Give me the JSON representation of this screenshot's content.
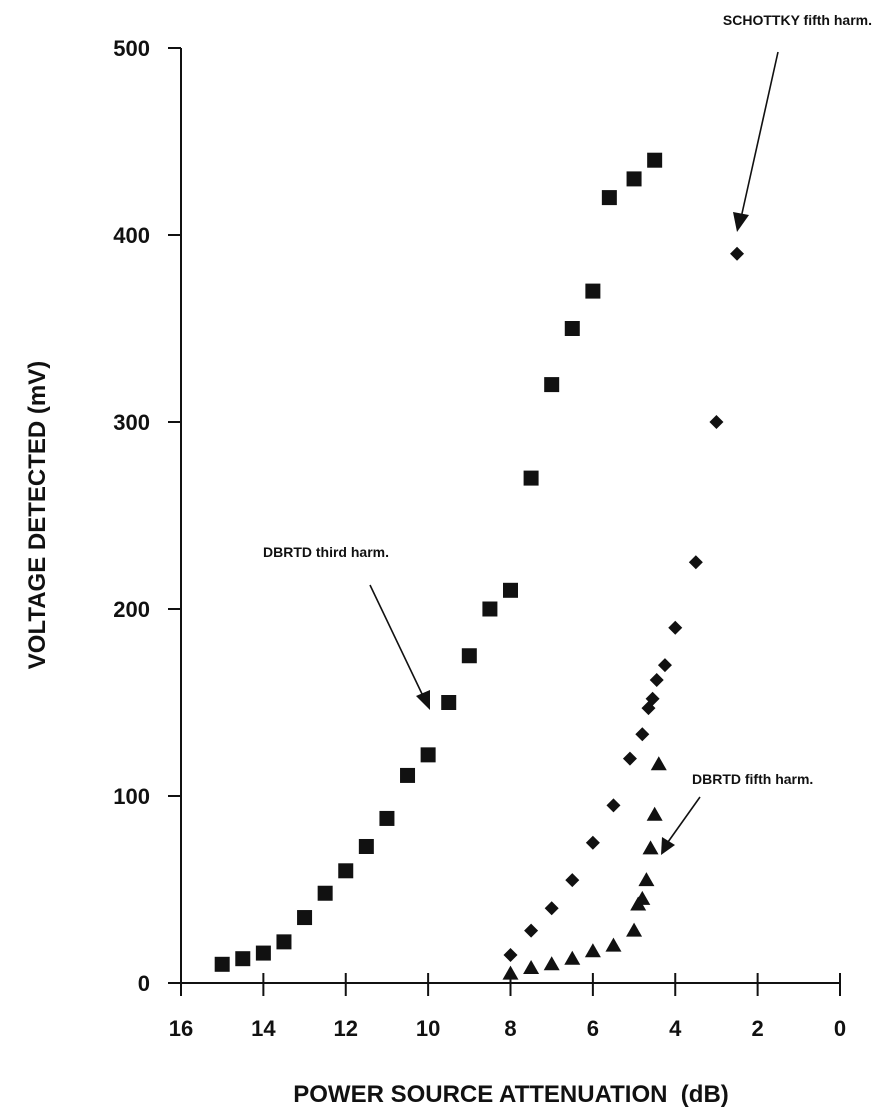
{
  "chart_data": {
    "type": "scatter",
    "title": "",
    "xlabel": "POWER SOURCE ATTENUATION  (dB)",
    "ylabel": "VOLTAGE DETECTED (mV)",
    "xlim": [
      16,
      0
    ],
    "ylim": [
      0,
      500
    ],
    "x_reversed": true,
    "x_ticks": [
      16,
      14,
      12,
      10,
      8,
      6,
      4,
      2,
      0
    ],
    "y_ticks": [
      0,
      100,
      200,
      300,
      400,
      500
    ],
    "grid": false,
    "series": [
      {
        "name": "DBRTD third harm.",
        "marker": "square",
        "x": [
          15.0,
          14.5,
          14.0,
          13.5,
          13.0,
          12.5,
          12.0,
          11.5,
          11.0,
          10.5,
          10.0,
          9.5,
          9.0,
          8.5,
          8.0,
          7.5,
          7.0,
          6.5,
          6.0,
          5.6,
          5.0,
          4.5
        ],
        "y": [
          10,
          13,
          16,
          22,
          35,
          48,
          60,
          73,
          88,
          111,
          122,
          150,
          175,
          200,
          210,
          270,
          320,
          350,
          370,
          420,
          430,
          440
        ]
      },
      {
        "name": "SCHOTTKY fifth harm.",
        "marker": "diamond",
        "x": [
          8.0,
          7.5,
          7.0,
          6.5,
          6.0,
          5.5,
          5.1,
          4.8,
          4.65,
          4.55,
          4.45,
          4.25,
          4.0,
          3.5,
          3.0,
          2.5
        ],
        "y": [
          15,
          28,
          40,
          55,
          75,
          95,
          120,
          133,
          147,
          152,
          162,
          170,
          190,
          225,
          300,
          390
        ]
      },
      {
        "name": "DBRTD fifth harm.",
        "marker": "triangle",
        "x": [
          8.0,
          7.5,
          7.0,
          6.5,
          6.0,
          5.5,
          5.0,
          4.9,
          4.8,
          4.7,
          4.6,
          4.5,
          4.4
        ],
        "y": [
          5,
          8,
          10,
          13,
          17,
          20,
          28,
          42,
          45,
          55,
          72,
          90,
          117
        ]
      }
    ],
    "annotations": [
      {
        "text": "SCHOTTKY fifth harm."
      },
      {
        "text": "DBRTD third harm."
      },
      {
        "text": "DBRTD fifth harm."
      }
    ]
  }
}
